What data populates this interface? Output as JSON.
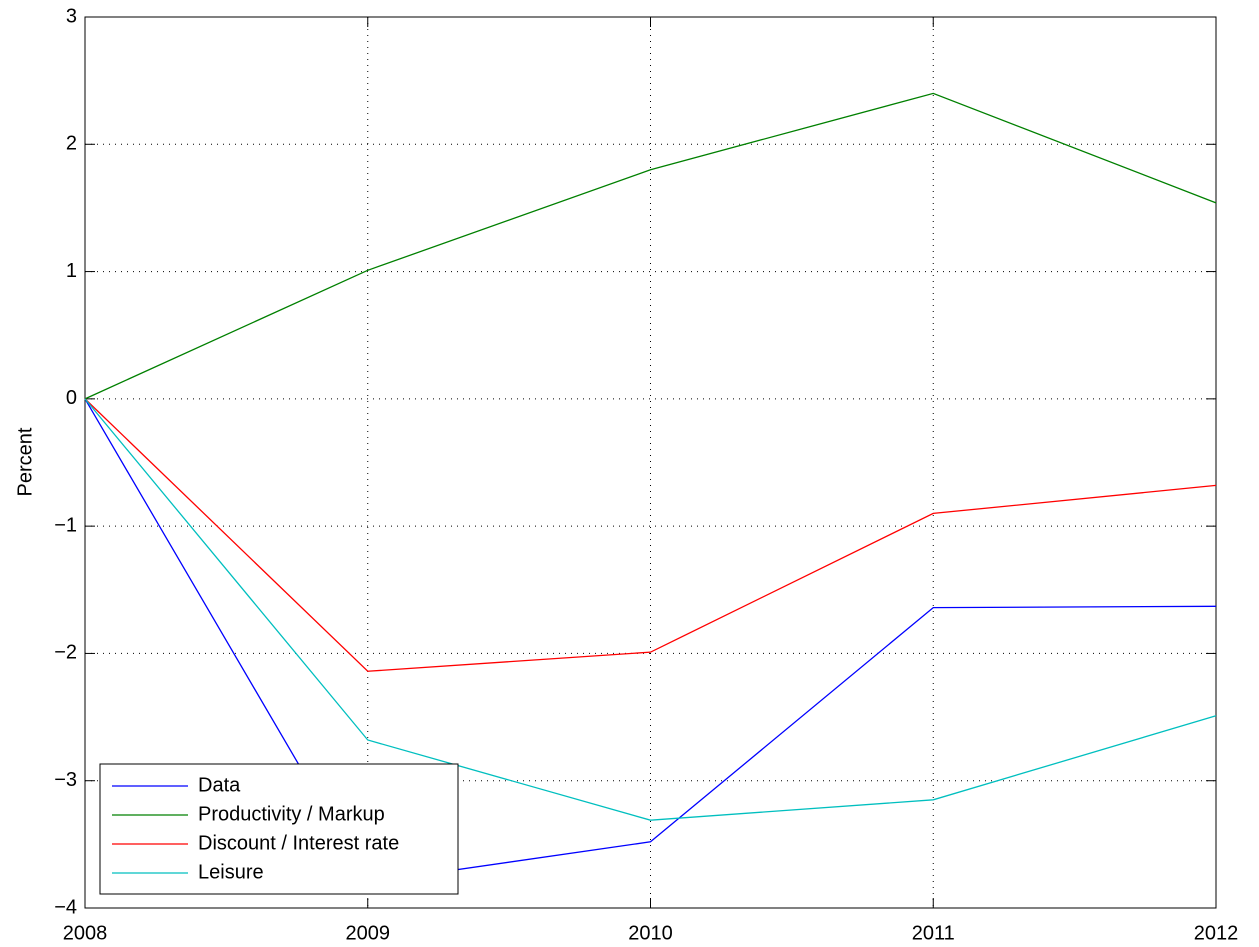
{
  "chart_data": {
    "type": "line",
    "ylabel": "Percent",
    "x": [
      2008,
      2009,
      2010,
      2011,
      2012
    ],
    "series": [
      {
        "name": "Data",
        "color": "#0000ff",
        "values": [
          0,
          -3.8,
          -3.48,
          -1.64,
          -1.63
        ]
      },
      {
        "name": "Productivity / Markup",
        "color": "#008000",
        "values": [
          0,
          1.01,
          1.8,
          2.4,
          1.54
        ]
      },
      {
        "name": "Discount / Interest rate",
        "color": "#ff0000",
        "values": [
          0,
          -2.14,
          -1.99,
          -0.9,
          -0.68
        ]
      },
      {
        "name": "Leisure",
        "color": "#00bfbf",
        "values": [
          0,
          -2.68,
          -3.31,
          -3.15,
          -2.49
        ]
      }
    ],
    "xlim": [
      2008,
      2012
    ],
    "xticks": [
      2008,
      2009,
      2010,
      2011,
      2012
    ],
    "ylim": [
      -4,
      3
    ],
    "yticks": [
      {
        "value": -4,
        "label": "−4"
      },
      {
        "value": -3,
        "label": "−3"
      },
      {
        "value": -2,
        "label": "−2"
      },
      {
        "value": -1,
        "label": "−1"
      },
      0,
      1,
      2,
      3
    ],
    "grid": true,
    "legend": "lower left"
  }
}
